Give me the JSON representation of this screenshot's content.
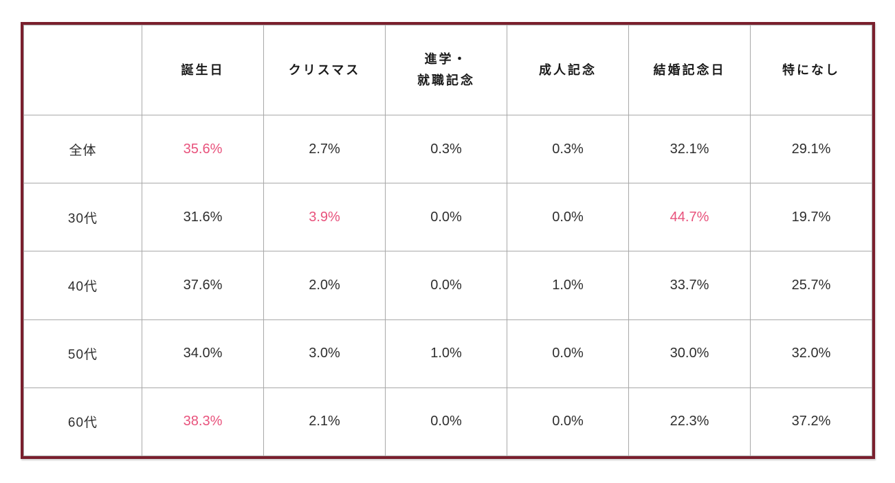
{
  "table": {
    "colors": {
      "outer_border": "#7a1f2d",
      "grid_line": "#a8a8a8",
      "text": "#2e2e2e",
      "highlight": "#e8527c"
    },
    "columns": [
      "",
      "誕生日",
      "クリスマス",
      "進学・\n就職記念",
      "成人記念",
      "結婚記念日",
      "特になし"
    ],
    "rows": [
      {
        "label": "全体",
        "values": [
          "35.6%",
          "2.7%",
          "0.3%",
          "0.3%",
          "32.1%",
          "29.1%"
        ]
      },
      {
        "label": "30代",
        "values": [
          "31.6%",
          "3.9%",
          "0.0%",
          "0.0%",
          "44.7%",
          "19.7%"
        ]
      },
      {
        "label": "40代",
        "values": [
          "37.6%",
          "2.0%",
          "0.0%",
          "1.0%",
          "33.7%",
          "25.7%"
        ]
      },
      {
        "label": "50代",
        "values": [
          "34.0%",
          "3.0%",
          "1.0%",
          "0.0%",
          "30.0%",
          "32.0%"
        ]
      },
      {
        "label": "60代",
        "values": [
          "38.3%",
          "2.1%",
          "0.0%",
          "0.0%",
          "22.3%",
          "37.2%"
        ]
      }
    ],
    "highlighted_cells": [
      [
        0,
        0
      ],
      [
        1,
        1
      ],
      [
        1,
        4
      ],
      [
        4,
        0
      ]
    ]
  },
  "chart_data": {
    "type": "table",
    "title": "",
    "categories": [
      "誕生日",
      "クリスマス",
      "進学・就職記念",
      "成人記念",
      "結婚記念日",
      "特になし"
    ],
    "series": [
      {
        "name": "全体",
        "values": [
          35.6,
          2.7,
          0.3,
          0.3,
          32.1,
          29.1
        ]
      },
      {
        "name": "30代",
        "values": [
          31.6,
          3.9,
          0.0,
          0.0,
          44.7,
          19.7
        ]
      },
      {
        "name": "40代",
        "values": [
          37.6,
          2.0,
          0.0,
          1.0,
          33.7,
          25.7
        ]
      },
      {
        "name": "50代",
        "values": [
          34.0,
          3.0,
          1.0,
          0.0,
          30.0,
          32.0
        ]
      },
      {
        "name": "60代",
        "values": [
          38.3,
          2.1,
          0.0,
          0.0,
          22.3,
          37.2
        ]
      }
    ],
    "unit": "%"
  }
}
